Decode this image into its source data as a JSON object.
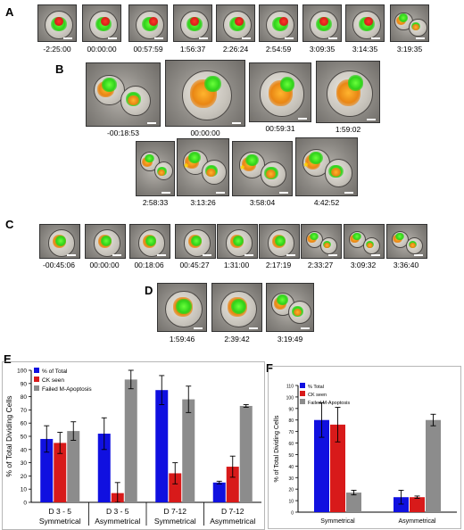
{
  "panels": {
    "A": {
      "letter": "A",
      "times": [
        "-2:25:00",
        "00:00:00",
        "00:57:59",
        "1:56:37",
        "2:26:24",
        "2:54:59",
        "3:09:35",
        "3:14:35",
        "3:19:35"
      ]
    },
    "B": {
      "letter": "B",
      "times_row1": [
        "-00:18:53",
        "00:00:00",
        "00:59:31",
        "1:59:02"
      ],
      "times_row2": [
        "2:58:33",
        "3:13:26",
        "3:58:04",
        "4:42:52"
      ]
    },
    "C": {
      "letter": "C",
      "times": [
        "-00:45:06",
        "00:00:00",
        "00:18:06",
        "00:45:27",
        "1:31:00",
        "2:17:19",
        "2:33:27",
        "3:09:32",
        "3:36:40"
      ]
    },
    "D": {
      "letter": "D",
      "times": [
        "1:59:46",
        "2:39:42",
        "3:19:49"
      ]
    },
    "E": {
      "letter": "E"
    },
    "F": {
      "letter": "F"
    }
  },
  "colors": {
    "total": "#1010e0",
    "ck": "#d81a1a",
    "failed": "#8c8c8c"
  },
  "chart_data": [
    {
      "type": "bar",
      "panel": "E",
      "categories": [
        "D 3 - 5|Symmetrical",
        "D 3 - 5|Asymmetrical",
        "D 7-12|Symmetrical",
        "D 7-12|Asymmetrical"
      ],
      "category_lines": [
        [
          "D 3 - 5",
          "Symmetrical"
        ],
        [
          "D 3 - 5",
          "Asymmetrical"
        ],
        [
          "D 7-12",
          "Symmetrical"
        ],
        [
          "D 7-12",
          "Asymmetrical"
        ]
      ],
      "series": [
        {
          "name": "% of Total",
          "values": [
            48,
            52,
            85,
            15
          ],
          "errors": [
            10,
            12,
            11,
            1
          ]
        },
        {
          "name": "CK seen",
          "values": [
            45,
            7,
            22,
            27
          ],
          "errors": [
            8,
            8,
            8,
            8
          ]
        },
        {
          "name": "Failed M-Apoptosis",
          "values": [
            54,
            93,
            78,
            73
          ],
          "errors": [
            7,
            7,
            10,
            1
          ]
        }
      ],
      "ylabel": "% of Total Dividing Cells",
      "ylim": [
        0,
        100
      ],
      "yticks": [
        "0",
        "10",
        "20",
        "30",
        "40",
        "50",
        "60",
        "70",
        "80",
        "90",
        "100"
      ],
      "legend": "top-left",
      "grid": false
    },
    {
      "type": "bar",
      "panel": "F",
      "categories": [
        "Symmetrical",
        "Asymmetrical"
      ],
      "series": [
        {
          "name": "% Total",
          "values": [
            80,
            13
          ],
          "errors": [
            15,
            6
          ]
        },
        {
          "name": "CK seen",
          "values": [
            76,
            13
          ],
          "errors": [
            15,
            1
          ]
        },
        {
          "name": "Failed M-Apoptosis",
          "values": [
            17,
            80
          ],
          "errors": [
            2,
            5
          ]
        }
      ],
      "ylabel": "% of Total Dividing Cells",
      "ylim": [
        0,
        110
      ],
      "yticks": [
        "0",
        "10",
        "20",
        "30",
        "40",
        "50",
        "60",
        "70",
        "80",
        "90",
        "100",
        "110"
      ],
      "legend": "top-left",
      "grid": false
    }
  ]
}
